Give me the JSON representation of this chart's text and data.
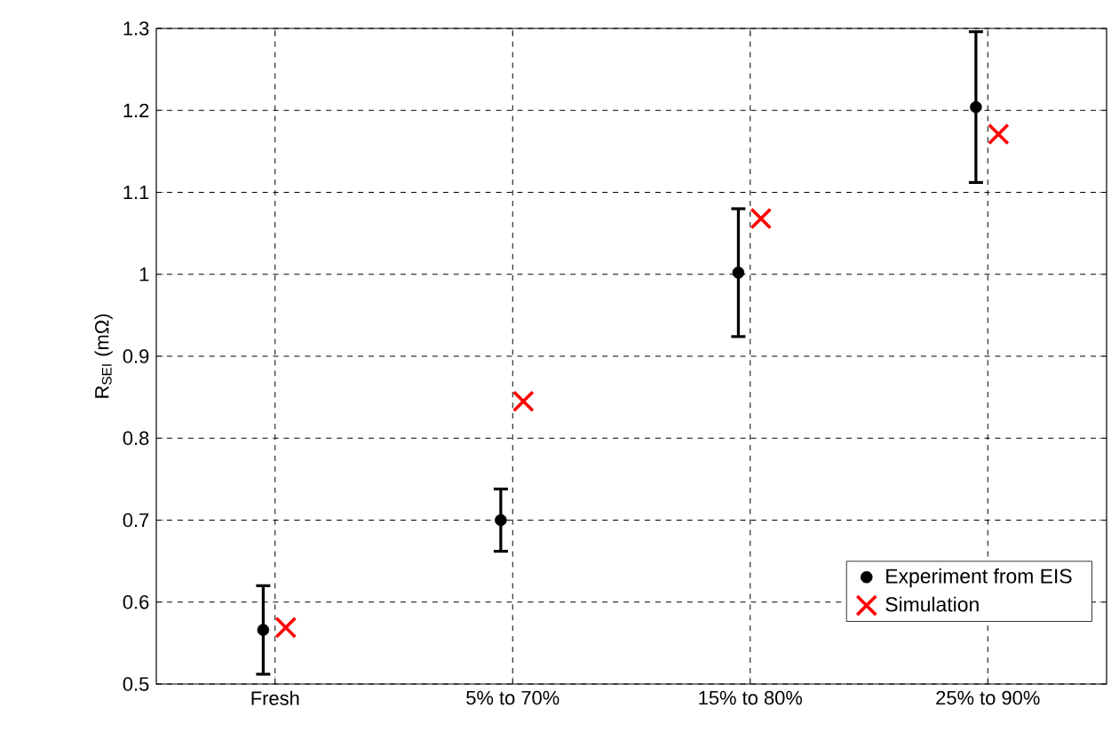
{
  "chart_data": {
    "type": "scatter",
    "ylabel": "R$_{SEI}$ (mΩ)",
    "categories": [
      "Fresh",
      "5% to 70%",
      "15% to 80%",
      "25% to 90%"
    ],
    "series": [
      {
        "name": "Experiment from EIS",
        "color": "#000000",
        "marker": "circle",
        "values": [
          0.566,
          0.7,
          1.002,
          1.204
        ],
        "errors": [
          0.054,
          0.038,
          0.078,
          0.092
        ]
      },
      {
        "name": "Simulation",
        "color": "#ff0000",
        "marker": "cross",
        "values": [
          0.569,
          0.845,
          1.068,
          1.171
        ]
      }
    ],
    "ylim": [
      0.5,
      1.3
    ],
    "yticks": [
      0.5,
      0.6,
      0.7,
      0.8,
      0.9,
      1,
      1.1,
      1.2,
      1.3
    ],
    "grid": true,
    "legend": "bottom right"
  }
}
